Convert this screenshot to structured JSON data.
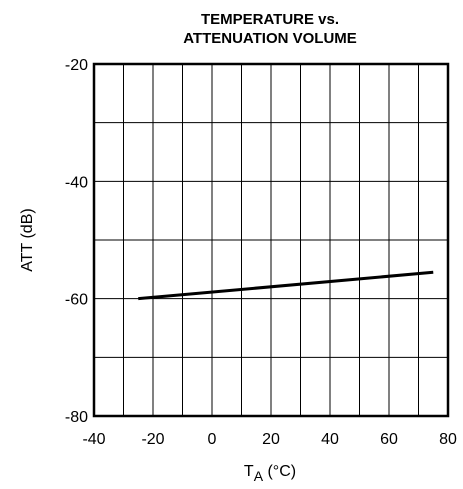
{
  "chart_data": {
    "type": "line",
    "title_line1": "TEMPERATURE vs.",
    "title_line2": "ATTENUATION VOLUME",
    "ylabel": "ATT (dB)",
    "xlabel_main": "T",
    "xlabel_sub": "A",
    "xlabel_unit": " (°C)",
    "xlim": [
      -40,
      80
    ],
    "ylim": [
      -80,
      -20
    ],
    "x_gridlines": [
      -30,
      -20,
      -10,
      0,
      10,
      20,
      30,
      40,
      50,
      60,
      70
    ],
    "y_gridlines": [
      -30,
      -40,
      -50,
      -60,
      -70
    ],
    "x_ticks": [
      {
        "value": -40,
        "label": "-40"
      },
      {
        "value": -20,
        "label": "-20"
      },
      {
        "value": 0,
        "label": "0"
      },
      {
        "value": 20,
        "label": "20"
      },
      {
        "value": 40,
        "label": "40"
      },
      {
        "value": 60,
        "label": "60"
      },
      {
        "value": 80,
        "label": "80"
      }
    ],
    "y_ticks": [
      {
        "value": -20,
        "label": "-20"
      },
      {
        "value": -40,
        "label": "-40"
      },
      {
        "value": -60,
        "label": "-60"
      },
      {
        "value": -80,
        "label": "-80"
      }
    ],
    "series": [
      {
        "x": [
          -25,
          75
        ],
        "y": [
          -60,
          -55.5
        ]
      }
    ],
    "grid": true
  }
}
